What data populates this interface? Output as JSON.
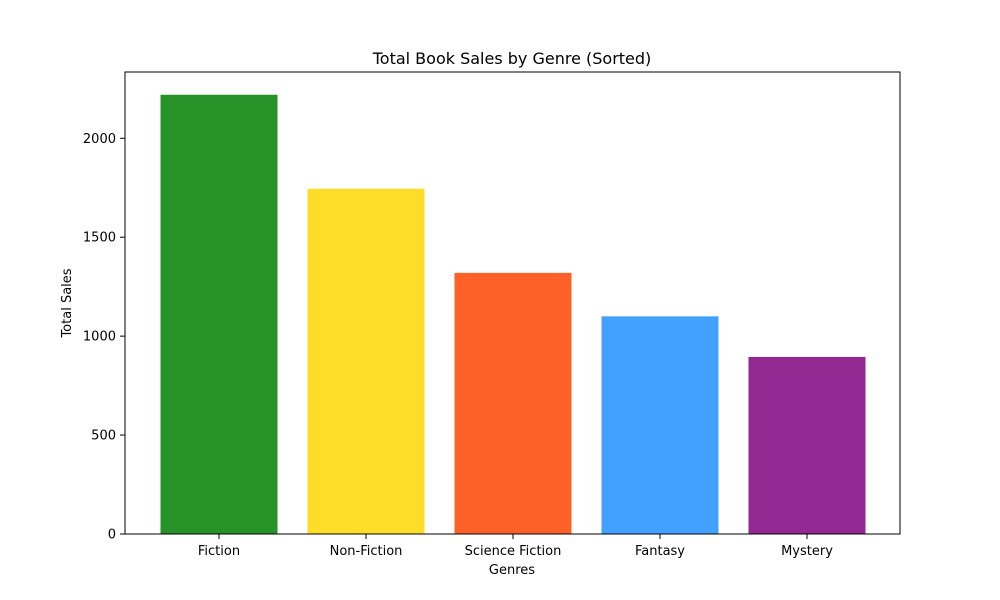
{
  "chart_data": {
    "type": "bar",
    "title": "Total Book Sales by Genre (Sorted)",
    "xlabel": "Genres",
    "ylabel": "Total Sales",
    "categories": [
      "Fiction",
      "Non-Fiction",
      "Science Fiction",
      "Fantasy",
      "Mystery"
    ],
    "values": [
      2220,
      1745,
      1320,
      1100,
      895
    ],
    "colors": [
      "#279228",
      "#fedd28",
      "#fe6127",
      "#42a0fe",
      "#922892"
    ],
    "ylim": [
      0,
      2335
    ],
    "yticks": [
      0,
      500,
      1000,
      1500,
      2000
    ],
    "grid": false,
    "legend": "none"
  }
}
